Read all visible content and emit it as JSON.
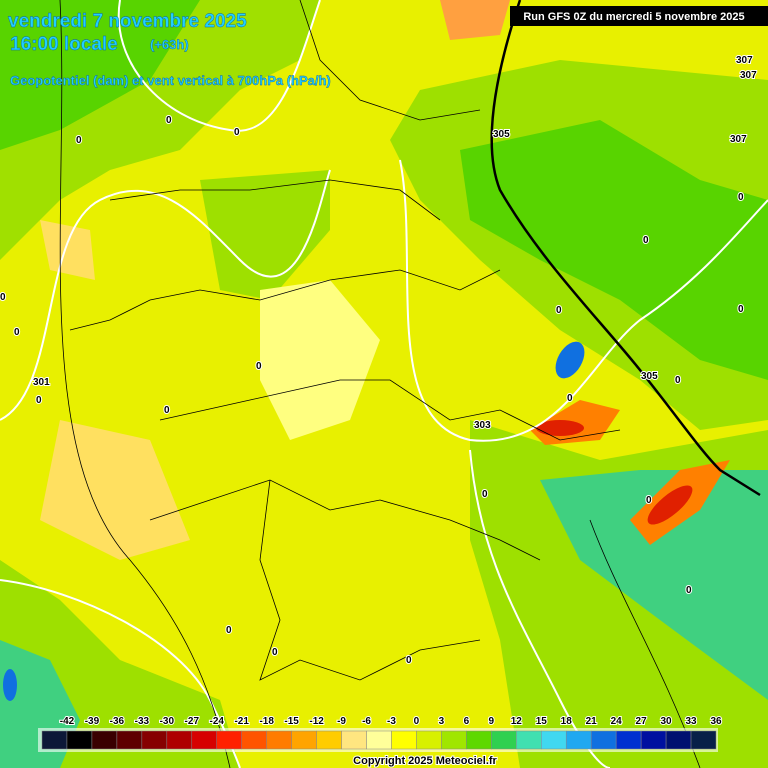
{
  "header": {
    "date": "vendredi 7 novembre 2025",
    "time": "16:00 locale",
    "lead": "(+63h)",
    "subtitle": "Geopotentiel (dam) et vent vertical à 700hPa (hPa/h)"
  },
  "run": "Run GFS 0Z du mercredi 5 novembre 2025",
  "contour_labels": [
    "0",
    "0",
    "0",
    "0",
    "0",
    "0",
    "0",
    "0",
    "0",
    "0",
    "0",
    "0",
    "0",
    "0",
    "0",
    "0",
    "0",
    "0",
    "0",
    "0",
    "305",
    "305",
    "303",
    "307",
    "307",
    "307",
    "301"
  ],
  "legend": {
    "labels": [
      -42,
      -39,
      -36,
      -33,
      -30,
      -27,
      -24,
      -21,
      -18,
      -15,
      -12,
      -9,
      -6,
      -3,
      0,
      3,
      6,
      9,
      12,
      15,
      18,
      21,
      24,
      27,
      30,
      33,
      36
    ],
    "colors": [
      "#0c1838",
      "#000000",
      "#3a0000",
      "#5e0000",
      "#860000",
      "#ae0000",
      "#d60000",
      "#ff2000",
      "#ff5400",
      "#ff7c00",
      "#ffa400",
      "#ffcc00",
      "#ffe680",
      "#ffff9a",
      "#ffff00",
      "#d8f000",
      "#a0e600",
      "#5ed800",
      "#30d050",
      "#40e0b0",
      "#40d8f0",
      "#20a8f0",
      "#1070e0",
      "#0030d0",
      "#0010a0",
      "#001070",
      "#082048"
    ]
  },
  "copyright": "Copyright 2025 Meteociel.fr"
}
